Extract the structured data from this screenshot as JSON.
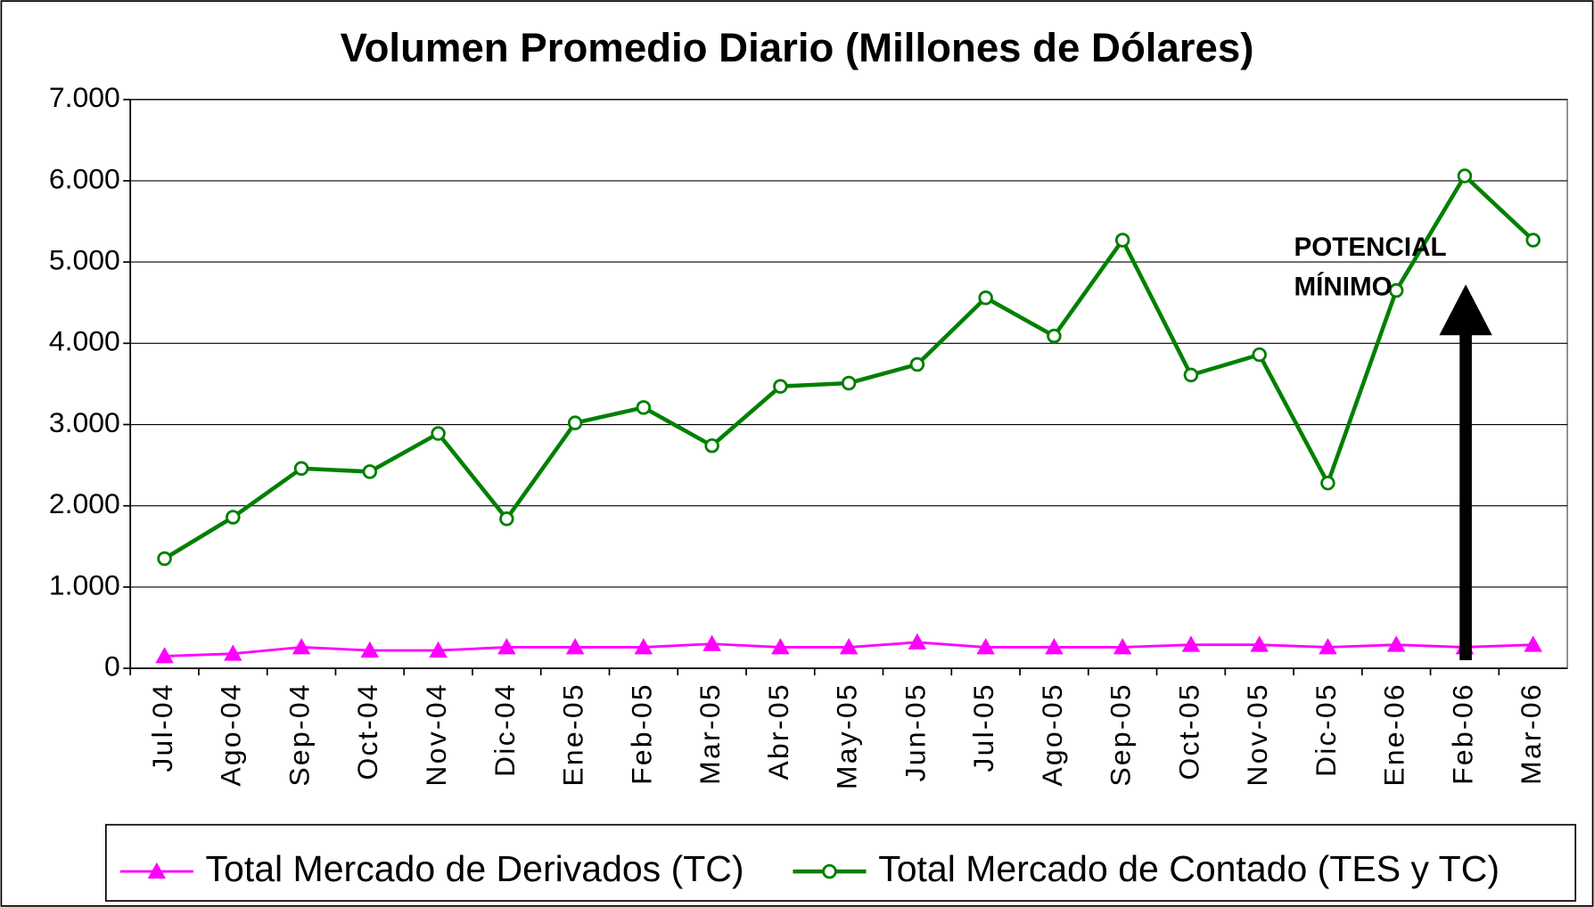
{
  "chart_data": {
    "type": "line",
    "title": "Volumen Promedio Diario (Millones de Dólares)",
    "categories": [
      "Jul-04",
      "Ago-04",
      "Sep-04",
      "Oct-04",
      "Nov-04",
      "Dic-04",
      "Ene-05",
      "Feb-05",
      "Mar-05",
      "Abr-05",
      "May-05",
      "Jun-05",
      "Jul-05",
      "Ago-05",
      "Sep-05",
      "Oct-05",
      "Nov-05",
      "Dic-05",
      "Ene-06",
      "Feb-06",
      "Mar-06"
    ],
    "series": [
      {
        "name": "Total Mercado de Derivados (TC)",
        "color": "#ff00ff",
        "marker": "triangle",
        "values": [
          150,
          180,
          260,
          220,
          220,
          260,
          260,
          260,
          300,
          260,
          260,
          320,
          260,
          260,
          260,
          290,
          290,
          260,
          290,
          260,
          290
        ]
      },
      {
        "name": "Total Mercado de Contado (TES y TC)",
        "color": "#008000",
        "marker": "circle",
        "values": [
          1350,
          1860,
          2460,
          2420,
          2890,
          1840,
          3020,
          3210,
          2740,
          3470,
          3510,
          3740,
          4560,
          4090,
          5270,
          3610,
          3860,
          2280,
          4650,
          6060,
          5270
        ]
      }
    ],
    "ylim": [
      0,
      7000
    ],
    "yticks": [
      0,
      {
        "value": 1000,
        "label": "1.000"
      },
      {
        "value": 2000,
        "label": "2.000"
      },
      {
        "value": 3000,
        "label": "3.000"
      },
      {
        "value": 4000,
        "label": "4.000"
      },
      {
        "value": 5000,
        "label": "5.000"
      },
      {
        "value": 6000,
        "label": "6.000"
      },
      {
        "value": 7000,
        "label": "7.000"
      }
    ],
    "grid": true,
    "legend": "bottom",
    "annotation": [
      "POTENCIAL",
      "MÍNIMO"
    ]
  }
}
